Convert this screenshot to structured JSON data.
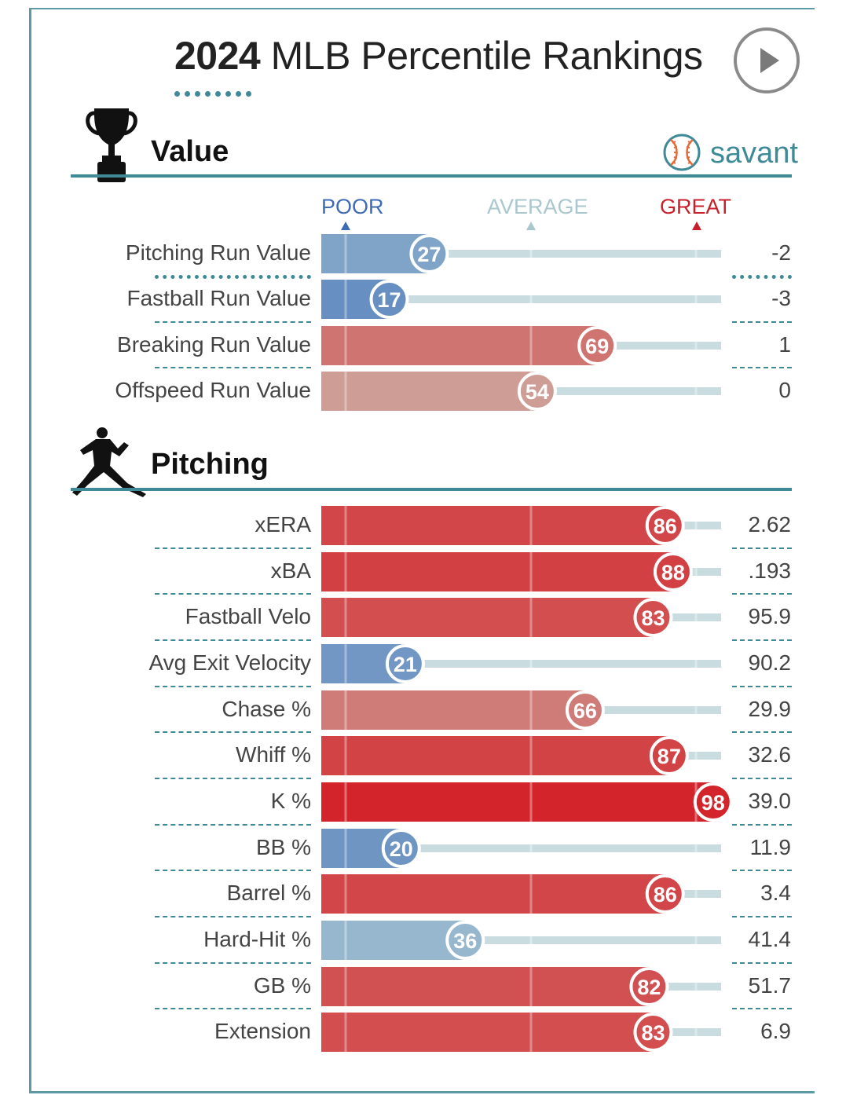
{
  "header": {
    "year": "2024",
    "title_rest": "MLB Percentile Rankings",
    "play_icon": "play-icon"
  },
  "value_section": {
    "title": "Value",
    "icon": "trophy-icon",
    "brand": "savant",
    "brand_icon": "baseball-icon"
  },
  "pitching_section": {
    "title": "Pitching",
    "icon": "pitcher-icon"
  },
  "scale": {
    "poor": "POOR",
    "average": "AVERAGE",
    "great": "GREAT"
  },
  "colors": {
    "poor": "#3e6bb5",
    "great": "#d41f26",
    "track": "#c9dde0",
    "accent": "#3f8a96"
  },
  "chart_data": [
    {
      "type": "bar",
      "title": "Value",
      "categories": [
        "Pitching Run Value",
        "Fastball Run Value",
        "Breaking Run Value",
        "Offspeed Run Value"
      ],
      "series": [
        {
          "values": [
            27,
            17,
            69,
            54
          ]
        }
      ],
      "stat_values": [
        "-2",
        "-3",
        "1",
        "0"
      ],
      "ylim": [
        0,
        100
      ]
    },
    {
      "type": "bar",
      "title": "Pitching",
      "categories": [
        "xERA",
        "xBA",
        "Fastball Velo",
        "Avg Exit Velocity",
        "Chase %",
        "Whiff %",
        "K %",
        "BB %",
        "Barrel %",
        "Hard-Hit %",
        "GB %",
        "Extension"
      ],
      "series": [
        {
          "values": [
            86,
            88,
            83,
            21,
            66,
            87,
            98,
            20,
            86,
            36,
            82,
            83
          ]
        }
      ],
      "stat_values": [
        "2.62",
        ".193",
        "95.9",
        "90.2",
        "29.9",
        "32.6",
        "39.0",
        "11.9",
        "3.4",
        "41.4",
        "51.7",
        "6.9"
      ],
      "ylim": [
        0,
        100
      ]
    }
  ]
}
